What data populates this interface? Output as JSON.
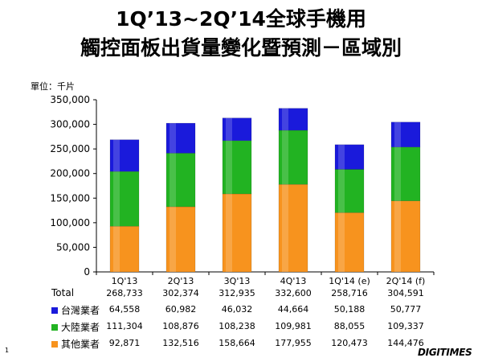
{
  "slide": {
    "title_line1": "1Q’13~2Q’14全球手機用",
    "title_line2": "觸控面板出貨量變化暨預測－區域別",
    "unit_label": "單位：千片",
    "page_number": "1",
    "brand": "DIGITIMES"
  },
  "chart_data": {
    "type": "bar",
    "stacked": true,
    "categories": [
      "1Q'13",
      "2Q'13",
      "3Q'13",
      "4Q'13",
      "1Q'14 (e)",
      "2Q'14 (f)"
    ],
    "ylim": [
      0,
      350000
    ],
    "yticks": [
      "0",
      "50,000",
      "100,000",
      "150,000",
      "200,000",
      "250,000",
      "300,000",
      "350,000"
    ],
    "ytick_values": [
      0,
      50000,
      100000,
      150000,
      200000,
      250000,
      300000,
      350000
    ],
    "grid": false,
    "series": [
      {
        "name": "其他業者",
        "color": "#f7931e",
        "values": [
          92871,
          132516,
          158664,
          177955,
          120473,
          144476
        ],
        "labels": [
          "92,871",
          "132,516",
          "158,664",
          "177,955",
          "120,473",
          "144,476"
        ]
      },
      {
        "name": "大陸業者",
        "color": "#22b322",
        "values": [
          111304,
          108876,
          108238,
          109981,
          88055,
          109337
        ],
        "labels": [
          "111,304",
          "108,876",
          "108,238",
          "109,981",
          "88,055",
          "109,337"
        ]
      },
      {
        "name": "台灣業者",
        "color": "#1a1adb",
        "values": [
          64558,
          60982,
          46032,
          44664,
          50188,
          50777
        ],
        "labels": [
          "64,558",
          "60,982",
          "46,032",
          "44,664",
          "50,188",
          "50,777"
        ]
      }
    ],
    "total_label": "Total",
    "totals": [
      "268,733",
      "302,374",
      "312,935",
      "332,600",
      "258,716",
      "304,591"
    ]
  }
}
